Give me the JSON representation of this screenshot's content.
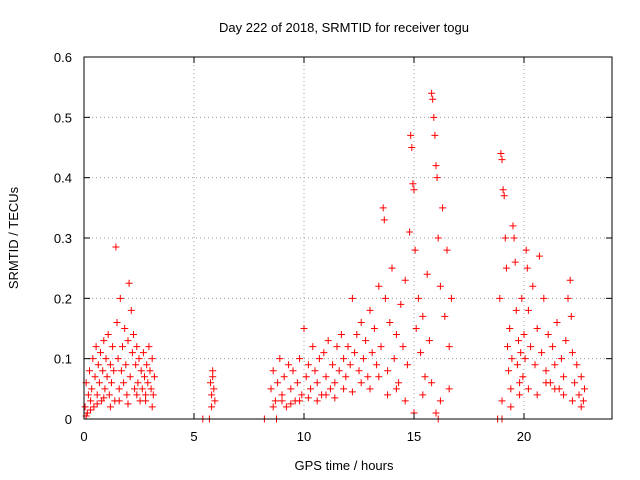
{
  "chart_data": {
    "type": "scatter",
    "title": "Day 222 of 2018, SRMTID for receiver togu",
    "xlabel": "GPS time / hours",
    "ylabel": "SRMTID / TECUs",
    "xlim": [
      0,
      24
    ],
    "ylim": [
      0,
      0.6
    ],
    "x_ticks": [
      0,
      5,
      10,
      15,
      20
    ],
    "x_tick_labels": [
      "0",
      "5",
      "10",
      "15",
      "20"
    ],
    "y_ticks": [
      0,
      0.1,
      0.2,
      0.3,
      0.4,
      0.5,
      0.6
    ],
    "y_tick_labels": [
      "0",
      "0.1",
      "0.2",
      "0.3",
      "0.4",
      "0.5",
      "0.6"
    ],
    "grid": true,
    "marker": "+",
    "series": [
      {
        "name": "SRMTID",
        "color": "#ff0000",
        "points": [
          [
            0.05,
            0.02
          ],
          [
            0.1,
            0.06
          ],
          [
            0.15,
            0.01
          ],
          [
            0.2,
            0.04
          ],
          [
            0.25,
            0.08
          ],
          [
            0.3,
            0.03
          ],
          [
            0.35,
            0.05
          ],
          [
            0.4,
            0.1
          ],
          [
            0.45,
            0.02
          ],
          [
            0.5,
            0.07
          ],
          [
            0.55,
            0.12
          ],
          [
            0.6,
            0.04
          ],
          [
            0.65,
            0.09
          ],
          [
            0.7,
            0.06
          ],
          [
            0.75,
            0.11
          ],
          [
            0.8,
            0.03
          ],
          [
            0.85,
            0.08
          ],
          [
            0.9,
            0.13
          ],
          [
            0.95,
            0.05
          ],
          [
            1.0,
            0.1
          ],
          [
            1.05,
            0.07
          ],
          [
            1.1,
            0.14
          ],
          [
            1.15,
            0.04
          ],
          [
            1.2,
            0.09
          ],
          [
            1.25,
            0.06
          ],
          [
            1.3,
            0.12
          ],
          [
            1.35,
            0.08
          ],
          [
            1.4,
            0.03
          ],
          [
            1.45,
            0.285
          ],
          [
            1.5,
            0.16
          ],
          [
            1.55,
            0.1
          ],
          [
            1.6,
            0.05
          ],
          [
            1.65,
            0.2
          ],
          [
            1.7,
            0.08
          ],
          [
            1.75,
            0.12
          ],
          [
            1.8,
            0.06
          ],
          [
            1.85,
            0.15
          ],
          [
            1.9,
            0.09
          ],
          [
            1.95,
            0.04
          ],
          [
            2.0,
            0.13
          ],
          [
            2.05,
            0.225
          ],
          [
            2.1,
            0.07
          ],
          [
            2.15,
            0.18
          ],
          [
            2.2,
            0.11
          ],
          [
            2.25,
            0.14
          ],
          [
            2.3,
            0.05
          ],
          [
            2.35,
            0.09
          ],
          [
            2.4,
            0.12
          ],
          [
            2.45,
            0.06
          ],
          [
            2.5,
            0.1
          ],
          [
            2.55,
            0.03
          ],
          [
            2.6,
            0.08
          ],
          [
            2.65,
            0.05
          ],
          [
            2.7,
            0.11
          ],
          [
            2.75,
            0.07
          ],
          [
            2.8,
            0.04
          ],
          [
            2.85,
            0.09
          ],
          [
            2.9,
            0.06
          ],
          [
            2.95,
            0.12
          ],
          [
            3.0,
            0.08
          ],
          [
            3.05,
            0.05
          ],
          [
            3.1,
            0.1
          ],
          [
            3.15,
            0.04
          ],
          [
            3.2,
            0.07
          ],
          [
            0.1,
            0.005
          ],
          [
            0.3,
            0.015
          ],
          [
            0.6,
            0.025
          ],
          [
            0.9,
            0.035
          ],
          [
            1.2,
            0.02
          ],
          [
            1.6,
            0.03
          ],
          [
            2.0,
            0.025
          ],
          [
            2.4,
            0.04
          ],
          [
            2.8,
            0.03
          ],
          [
            3.1,
            0.02
          ],
          [
            5.4,
            0.0
          ],
          [
            5.7,
            0.0
          ],
          [
            5.75,
            0.06
          ],
          [
            5.8,
            0.04
          ],
          [
            5.85,
            0.08
          ],
          [
            5.9,
            0.05
          ],
          [
            5.95,
            0.03
          ],
          [
            5.8,
            0.02
          ],
          [
            5.85,
            0.07
          ],
          [
            8.2,
            0.0
          ],
          [
            8.5,
            0.05
          ],
          [
            8.6,
            0.08
          ],
          [
            8.7,
            0.03
          ],
          [
            8.75,
            0.0
          ],
          [
            8.8,
            0.06
          ],
          [
            8.9,
            0.1
          ],
          [
            9.0,
            0.04
          ],
          [
            9.1,
            0.07
          ],
          [
            9.2,
            0.02
          ],
          [
            9.3,
            0.09
          ],
          [
            9.4,
            0.05
          ],
          [
            9.5,
            0.08
          ],
          [
            9.6,
            0.03
          ],
          [
            9.7,
            0.06
          ],
          [
            9.8,
            0.1
          ],
          [
            9.9,
            0.04
          ],
          [
            10.0,
            0.15
          ],
          [
            10.1,
            0.07
          ],
          [
            10.2,
            0.09
          ],
          [
            10.3,
            0.05
          ],
          [
            10.4,
            0.12
          ],
          [
            10.5,
            0.08
          ],
          [
            10.6,
            0.06
          ],
          [
            10.7,
            0.1
          ],
          [
            10.8,
            0.04
          ],
          [
            10.9,
            0.11
          ],
          [
            11.0,
            0.07
          ],
          [
            11.1,
            0.13
          ],
          [
            11.2,
            0.05
          ],
          [
            11.3,
            0.09
          ],
          [
            11.4,
            0.06
          ],
          [
            11.5,
            0.12
          ],
          [
            11.6,
            0.08
          ],
          [
            11.7,
            0.14
          ],
          [
            11.8,
            0.1
          ],
          [
            11.9,
            0.07
          ],
          [
            12.0,
            0.12
          ],
          [
            12.1,
            0.09
          ],
          [
            12.2,
            0.2
          ],
          [
            12.3,
            0.11
          ],
          [
            12.4,
            0.14
          ],
          [
            12.5,
            0.08
          ],
          [
            12.6,
            0.16
          ],
          [
            12.7,
            0.1
          ],
          [
            12.8,
            0.13
          ],
          [
            12.9,
            0.07
          ],
          [
            13.0,
            0.18
          ],
          [
            13.1,
            0.11
          ],
          [
            13.2,
            0.15
          ],
          [
            13.3,
            0.09
          ],
          [
            13.4,
            0.22
          ],
          [
            13.5,
            0.12
          ],
          [
            13.6,
            0.35
          ],
          [
            13.65,
            0.33
          ],
          [
            13.7,
            0.2
          ],
          [
            13.8,
            0.08
          ],
          [
            13.9,
            0.16
          ],
          [
            14.0,
            0.25
          ],
          [
            14.1,
            0.1
          ],
          [
            14.2,
            0.14
          ],
          [
            14.3,
            0.06
          ],
          [
            14.4,
            0.19
          ],
          [
            14.5,
            0.12
          ],
          [
            14.6,
            0.23
          ],
          [
            14.7,
            0.09
          ],
          [
            14.8,
            0.31
          ],
          [
            14.85,
            0.47
          ],
          [
            14.9,
            0.45
          ],
          [
            14.95,
            0.39
          ],
          [
            15.0,
            0.38
          ],
          [
            15.05,
            0.28
          ],
          [
            15.1,
            0.15
          ],
          [
            15.2,
            0.2
          ],
          [
            15.3,
            0.11
          ],
          [
            15.4,
            0.17
          ],
          [
            15.5,
            0.07
          ],
          [
            15.6,
            0.24
          ],
          [
            15.7,
            0.13
          ],
          [
            15.8,
            0.54
          ],
          [
            15.85,
            0.53
          ],
          [
            15.9,
            0.5
          ],
          [
            15.95,
            0.47
          ],
          [
            16.0,
            0.42
          ],
          [
            16.05,
            0.4
          ],
          [
            16.1,
            0.3
          ],
          [
            16.2,
            0.22
          ],
          [
            16.3,
            0.35
          ],
          [
            16.4,
            0.17
          ],
          [
            16.5,
            0.28
          ],
          [
            16.6,
            0.12
          ],
          [
            16.7,
            0.2
          ],
          [
            16.1,
            0.0
          ],
          [
            16.0,
            0.01
          ],
          [
            8.6,
            0.02
          ],
          [
            9.0,
            0.03
          ],
          [
            9.4,
            0.025
          ],
          [
            9.8,
            0.03
          ],
          [
            10.2,
            0.035
          ],
          [
            10.6,
            0.03
          ],
          [
            11.0,
            0.04
          ],
          [
            11.4,
            0.035
          ],
          [
            11.8,
            0.05
          ],
          [
            12.2,
            0.045
          ],
          [
            12.6,
            0.06
          ],
          [
            13.0,
            0.05
          ],
          [
            13.4,
            0.07
          ],
          [
            13.8,
            0.04
          ],
          [
            14.2,
            0.05
          ],
          [
            14.6,
            0.03
          ],
          [
            15.0,
            0.01
          ],
          [
            15.4,
            0.04
          ],
          [
            15.8,
            0.06
          ],
          [
            16.2,
            0.03
          ],
          [
            16.6,
            0.05
          ],
          [
            18.8,
            0.0
          ],
          [
            19.0,
            0.0
          ],
          [
            18.9,
            0.2
          ],
          [
            18.95,
            0.44
          ],
          [
            19.0,
            0.43
          ],
          [
            19.05,
            0.38
          ],
          [
            19.1,
            0.37
          ],
          [
            19.15,
            0.3
          ],
          [
            19.2,
            0.25
          ],
          [
            19.25,
            0.12
          ],
          [
            19.3,
            0.08
          ],
          [
            19.35,
            0.15
          ],
          [
            19.4,
            0.05
          ],
          [
            19.45,
            0.1
          ],
          [
            19.5,
            0.32
          ],
          [
            19.55,
            0.3
          ],
          [
            19.6,
            0.26
          ],
          [
            19.65,
            0.18
          ],
          [
            19.7,
            0.09
          ],
          [
            19.75,
            0.13
          ],
          [
            19.8,
            0.06
          ],
          [
            19.85,
            0.11
          ],
          [
            19.9,
            0.2
          ],
          [
            19.95,
            0.07
          ],
          [
            20.0,
            0.14
          ],
          [
            20.05,
            0.1
          ],
          [
            20.1,
            0.28
          ],
          [
            20.15,
            0.25
          ],
          [
            20.2,
            0.18
          ],
          [
            20.3,
            0.12
          ],
          [
            20.4,
            0.22
          ],
          [
            20.5,
            0.09
          ],
          [
            20.6,
            0.15
          ],
          [
            20.7,
            0.27
          ],
          [
            20.8,
            0.11
          ],
          [
            20.9,
            0.2
          ],
          [
            21.0,
            0.08
          ],
          [
            21.1,
            0.14
          ],
          [
            21.2,
            0.06
          ],
          [
            21.3,
            0.12
          ],
          [
            21.4,
            0.09
          ],
          [
            21.5,
            0.16
          ],
          [
            21.6,
            0.05
          ],
          [
            21.7,
            0.1
          ],
          [
            21.8,
            0.07
          ],
          [
            21.9,
            0.13
          ],
          [
            22.0,
            0.2
          ],
          [
            22.1,
            0.23
          ],
          [
            22.15,
            0.17
          ],
          [
            22.2,
            0.11
          ],
          [
            22.3,
            0.06
          ],
          [
            22.4,
            0.09
          ],
          [
            22.5,
            0.04
          ],
          [
            22.6,
            0.07
          ],
          [
            22.7,
            0.03
          ],
          [
            22.75,
            0.05
          ],
          [
            19.0,
            0.03
          ],
          [
            19.4,
            0.02
          ],
          [
            19.8,
            0.04
          ],
          [
            20.2,
            0.05
          ],
          [
            20.6,
            0.04
          ],
          [
            21.0,
            0.06
          ],
          [
            21.4,
            0.05
          ],
          [
            21.8,
            0.04
          ],
          [
            22.2,
            0.03
          ],
          [
            22.6,
            0.02
          ]
        ]
      }
    ]
  }
}
